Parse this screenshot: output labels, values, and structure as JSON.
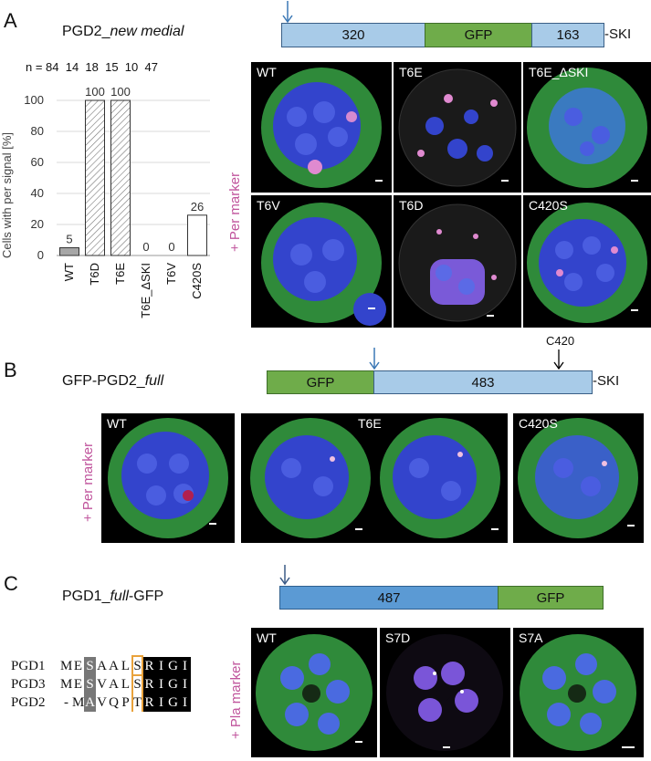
{
  "panel_a": {
    "letter": "A",
    "title_prefix": "PGD2_",
    "title_italic": "new medial",
    "construct": {
      "seg1": "320",
      "seg2": "GFP",
      "seg3": "163",
      "tail": "-SKI"
    },
    "n_label": "n = 84  14  18  15  10  47",
    "side_label": "+ Per marker",
    "images": [
      "WT",
      "T6E",
      "T6E_ΔSKI",
      "T6V",
      "T6D",
      "C420S"
    ]
  },
  "panel_b": {
    "letter": "B",
    "title_prefix": "GFP-PGD2_",
    "title_italic": "full",
    "construct": {
      "seg1": "GFP",
      "seg2": "483",
      "tail": "-SKI",
      "site": "C420"
    },
    "side_label": "+ Per marker",
    "images": [
      "WT",
      "T6E",
      "C420S"
    ]
  },
  "panel_c": {
    "letter": "C",
    "title_prefix": "PGD1_",
    "title_italic": "full",
    "title_suffix": "-GFP",
    "construct": {
      "seg1": "487",
      "seg2": "GFP"
    },
    "side_label": "+ Pla marker",
    "images": [
      "WT",
      "S7D",
      "S7A"
    ],
    "alignment": [
      {
        "name": "PGD1",
        "residues": [
          "M",
          "E",
          "S",
          "A",
          "A",
          "L",
          "S",
          "R",
          "I",
          "G",
          "I"
        ]
      },
      {
        "name": "PGD3",
        "residues": [
          "M",
          "E",
          "S",
          "V",
          "A",
          "L",
          "S",
          "R",
          "I",
          "G",
          "I"
        ]
      },
      {
        "name": "PGD2",
        "residues": [
          "-",
          "M",
          "A",
          "V",
          "Q",
          "P",
          "T",
          "R",
          "I",
          "G",
          "I"
        ]
      }
    ]
  },
  "colors": {
    "bar_wt": "#a6a6a6",
    "gfp": "#6fac4a",
    "construct_light": "#a8cbe8",
    "construct_dark": "#5b9ad4",
    "marker_text": "#c0549c",
    "arrow": "#3b78b5"
  },
  "chart_data": {
    "type": "bar",
    "categories": [
      "WT",
      "T6D",
      "T6E",
      "T6E_ΔSKI",
      "T6V",
      "C420S"
    ],
    "values": [
      5,
      100,
      100,
      0,
      0,
      26
    ],
    "value_labels": [
      "5",
      "100",
      "100",
      "0",
      "0",
      "26"
    ],
    "n": [
      84,
      14,
      18,
      15,
      10,
      47
    ],
    "ylabel": "Cells with per signal [%]",
    "ylim": [
      0,
      100
    ],
    "yticks": [
      0,
      20,
      40,
      60,
      80,
      100
    ],
    "grid": true,
    "bar_fills": [
      "solid-grey",
      "hatched",
      "hatched",
      "white",
      "white",
      "white"
    ]
  }
}
